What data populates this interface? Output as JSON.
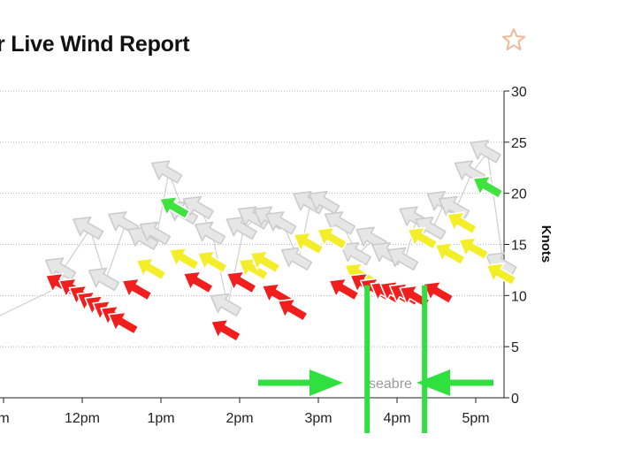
{
  "page": {
    "title": "r Live Wind Report",
    "favorite_icon": "star-outline-icon",
    "watermark": "seabre"
  },
  "colors": {
    "strong": "#f11e1e",
    "moderate": "#f4ee2a",
    "light": "#3fe23f",
    "gust": "#e6e6e6",
    "annotation": "#2fe03f"
  },
  "chart_data": {
    "type": "scatter",
    "title": "r Live Wind Report",
    "ylabel": "Knots",
    "ylim": [
      0,
      30
    ],
    "y_ticks": [
      0,
      5,
      10,
      15,
      20,
      25,
      30
    ],
    "x_ticks": [
      "m",
      "12pm",
      "1pm",
      "2pm",
      "3pm",
      "4pm",
      "5pm"
    ],
    "x_tick_hours": [
      11,
      12,
      13,
      14,
      15,
      16,
      17
    ],
    "xlim_hours": [
      11.0,
      17.55
    ],
    "grid": "horizontal",
    "series": [
      {
        "name": "",
        "marker": "wind-arrow",
        "points": [
          {
            "t": 11.75,
            "speed": 11,
            "color": "red"
          },
          {
            "t": 11.92,
            "speed": 10.5,
            "color": "red"
          },
          {
            "t": 12.05,
            "speed": 9.8,
            "color": "red"
          },
          {
            "t": 12.15,
            "speed": 9.2,
            "color": "red"
          },
          {
            "t": 12.25,
            "speed": 8.8,
            "color": "red"
          },
          {
            "t": 12.35,
            "speed": 8.3,
            "color": "red"
          },
          {
            "t": 12.45,
            "speed": 7.8,
            "color": "red"
          },
          {
            "t": 12.55,
            "speed": 7.2,
            "color": "red"
          },
          {
            "t": 12.72,
            "speed": 10.5,
            "color": "red"
          },
          {
            "t": 12.9,
            "speed": 12.5,
            "color": "yellow"
          },
          {
            "t": 13.2,
            "speed": 18.5,
            "color": "green"
          },
          {
            "t": 13.32,
            "speed": 13.5,
            "color": "yellow"
          },
          {
            "t": 13.5,
            "speed": 11.2,
            "color": "red"
          },
          {
            "t": 13.68,
            "speed": 13.2,
            "color": "yellow"
          },
          {
            "t": 13.85,
            "speed": 6.5,
            "color": "red"
          },
          {
            "t": 14.05,
            "speed": 11.2,
            "color": "red"
          },
          {
            "t": 14.2,
            "speed": 12.5,
            "color": "yellow"
          },
          {
            "t": 14.35,
            "speed": 13.2,
            "color": "yellow"
          },
          {
            "t": 14.5,
            "speed": 10,
            "color": "red"
          },
          {
            "t": 14.7,
            "speed": 8.5,
            "color": "red"
          },
          {
            "t": 14.9,
            "speed": 15,
            "color": "yellow"
          },
          {
            "t": 15.2,
            "speed": 15.5,
            "color": "yellow"
          },
          {
            "t": 15.35,
            "speed": 10.5,
            "color": "red"
          },
          {
            "t": 15.55,
            "speed": 12,
            "color": "yellow"
          },
          {
            "t": 15.62,
            "speed": 11,
            "color": "red"
          },
          {
            "t": 15.75,
            "speed": 10.5,
            "color": "red"
          },
          {
            "t": 15.88,
            "speed": 10.2,
            "color": "red"
          },
          {
            "t": 16.0,
            "speed": 10.2,
            "color": "red"
          },
          {
            "t": 16.12,
            "speed": 10,
            "color": "red"
          },
          {
            "t": 16.25,
            "speed": 9.8,
            "color": "red"
          },
          {
            "t": 16.35,
            "speed": 15.5,
            "color": "yellow"
          },
          {
            "t": 16.55,
            "speed": 10.2,
            "color": "red"
          },
          {
            "t": 16.7,
            "speed": 14,
            "color": "yellow"
          },
          {
            "t": 16.85,
            "speed": 17,
            "color": "yellow"
          },
          {
            "t": 17.0,
            "speed": 14.5,
            "color": "yellow"
          },
          {
            "t": 17.18,
            "speed": 20.5,
            "color": "green"
          },
          {
            "t": 17.35,
            "speed": 12,
            "color": "yellow"
          }
        ]
      },
      {
        "name": "",
        "marker": "gust-arrow",
        "points": [
          {
            "t": 11.75,
            "speed": 12.5
          },
          {
            "t": 12.1,
            "speed": 16.5
          },
          {
            "t": 12.3,
            "speed": 11.5
          },
          {
            "t": 12.55,
            "speed": 17
          },
          {
            "t": 12.8,
            "speed": 15.5
          },
          {
            "t": 12.95,
            "speed": 16
          },
          {
            "t": 13.1,
            "speed": 22
          },
          {
            "t": 13.3,
            "speed": 18
          },
          {
            "t": 13.5,
            "speed": 18.5
          },
          {
            "t": 13.65,
            "speed": 16
          },
          {
            "t": 13.85,
            "speed": 9
          },
          {
            "t": 14.05,
            "speed": 16.5
          },
          {
            "t": 14.2,
            "speed": 17.5
          },
          {
            "t": 14.4,
            "speed": 17.5
          },
          {
            "t": 14.55,
            "speed": 17
          },
          {
            "t": 14.75,
            "speed": 13.5
          },
          {
            "t": 14.9,
            "speed": 19
          },
          {
            "t": 15.1,
            "speed": 19
          },
          {
            "t": 15.3,
            "speed": 17
          },
          {
            "t": 15.5,
            "speed": 14
          },
          {
            "t": 15.7,
            "speed": 15.5
          },
          {
            "t": 15.9,
            "speed": 14
          },
          {
            "t": 16.1,
            "speed": 13.5
          },
          {
            "t": 16.25,
            "speed": 17.5
          },
          {
            "t": 16.45,
            "speed": 16.5
          },
          {
            "t": 16.6,
            "speed": 19
          },
          {
            "t": 16.75,
            "speed": 18.5
          },
          {
            "t": 16.95,
            "speed": 22
          },
          {
            "t": 17.15,
            "speed": 24
          },
          {
            "t": 17.35,
            "speed": 13
          }
        ]
      }
    ],
    "annotations": {
      "vertical_lines_hours": [
        15.62,
        16.35
      ]
    }
  }
}
